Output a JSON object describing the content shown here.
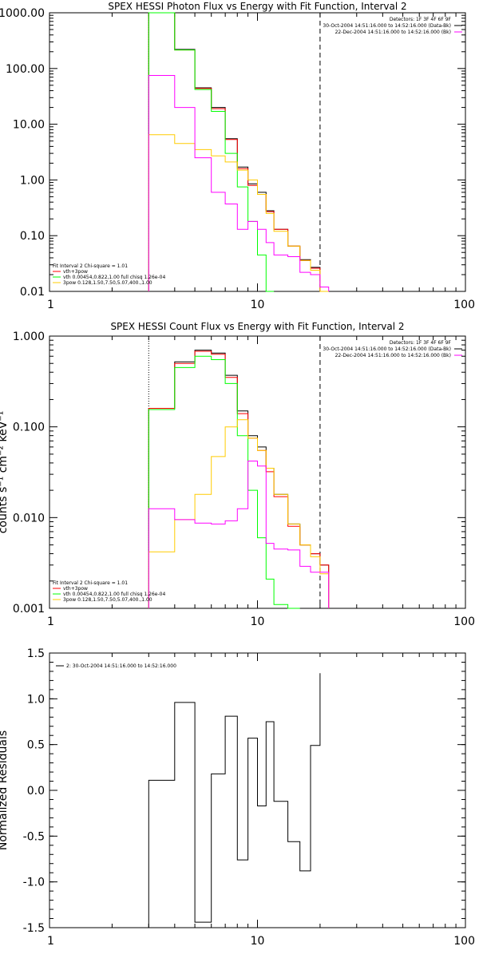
{
  "chart_data": [
    {
      "type": "line",
      "title": "SPEX HESSI Photon Flux vs Energy with Fit Function, Interval 2",
      "xscale": "log",
      "yscale": "log",
      "xlim": [
        1,
        100
      ],
      "ylim": [
        0.01,
        1000
      ],
      "xticks": [
        "1",
        "10",
        "100"
      ],
      "yticks": [
        "0.01",
        "0.10",
        "1.00",
        "10.00",
        "100.00",
        "1000.00"
      ],
      "ylabel": "",
      "header_lines": [
        "Detectors: 1F 3F 4F 6F 9F",
        "30-Oct-2004 14:51:16.000 to 14:52:16.000 (Data-Bk)",
        "22-Dec-2004 14:51:16.000 to 14:52:16.000 (Bk)"
      ],
      "header_colors": [
        "#000000",
        "#000000",
        "#ff00ff"
      ],
      "fit_lines": [
        "Fit Interval 2   Chi-square = 1.01",
        "vth+3pow",
        "vth 0.00454,0.822,1.00   full chisq 1.26e-04",
        "3pow 0.128,1.50,7.50,5.07,400.,1.00"
      ],
      "fit_colors": [
        "#000000",
        "#ff0000",
        "#00ff00",
        "#ffcc00"
      ],
      "vlines": [
        {
          "x": 3,
          "style": "dotted"
        },
        {
          "x": 20,
          "style": "dashed"
        }
      ],
      "edges": [
        3,
        4,
        5,
        6,
        7,
        8,
        9,
        10,
        11,
        12,
        14,
        16,
        18,
        20,
        22
      ],
      "series": [
        {
          "color": "#000000",
          "values": [
            1000,
            220,
            45,
            20,
            5.5,
            1.7,
            0.85,
            0.6,
            0.28,
            0.13,
            0.065,
            0.037,
            0.027,
            0.01
          ]
        },
        {
          "color": "#ff0000",
          "values": [
            1000,
            215,
            44,
            19,
            5.3,
            1.6,
            0.8,
            0.55,
            0.27,
            0.13,
            0.065,
            0.036,
            0.026,
            0.01
          ]
        },
        {
          "color": "#00ff00",
          "values": [
            1000,
            215,
            42,
            17,
            3.0,
            0.75,
            0.18,
            0.045,
            0.01
          ]
        },
        {
          "color": "#ffcc00",
          "values": [
            6.5,
            4.5,
            3.5,
            2.7,
            2.1,
            1.5,
            1.0,
            0.55,
            0.25,
            0.12,
            0.065,
            0.036,
            0.024,
            0.01
          ]
        },
        {
          "color": "#ff00ff",
          "values": [
            75,
            20,
            2.5,
            0.6,
            0.37,
            0.13,
            0.18,
            0.13,
            0.075,
            0.045,
            0.042,
            0.022,
            0.02,
            0.012
          ]
        }
      ]
    },
    {
      "type": "line",
      "title": "SPEX HESSI Count Flux vs Energy with Fit Function, Interval 2",
      "xscale": "log",
      "yscale": "log",
      "xlim": [
        1,
        100
      ],
      "ylim": [
        0.001,
        1
      ],
      "xticks": [
        "1",
        "10",
        "100"
      ],
      "yticks": [
        "0.001",
        "0.010",
        "0.100",
        "1.000"
      ],
      "ylabel": "counts s⁻¹ cm⁻² keV⁻¹",
      "header_lines": [
        "Detectors: 1F 3F 4F 6F 9F",
        "30-Oct-2004 14:51:16.000 to 14:52:16.000 (Data-Bk)",
        "22-Dec-2004 14:51:16.000 to 14:52:16.000 (Bk)"
      ],
      "header_colors": [
        "#000000",
        "#000000",
        "#ff00ff"
      ],
      "fit_lines": [
        "Fit Interval 2   Chi-square = 1.01",
        "vth+3pow",
        "vth 0.00454,0.822,1.00   full chisq 1.26e-04",
        "3pow 0.128,1.50,7.50,5.07,400.,1.00"
      ],
      "fit_colors": [
        "#000000",
        "#ff0000",
        "#00ff00",
        "#ffcc00"
      ],
      "vlines": [
        {
          "x": 3,
          "style": "dotted"
        },
        {
          "x": 20,
          "style": "dashed"
        }
      ],
      "edges": [
        3,
        4,
        5,
        6,
        7,
        8,
        9,
        10,
        11,
        12,
        14,
        16,
        18,
        20,
        22
      ],
      "series": [
        {
          "color": "#000000",
          "values": [
            0.16,
            0.52,
            0.7,
            0.65,
            0.37,
            0.15,
            0.08,
            0.06,
            0.035,
            0.018,
            0.0085,
            0.005,
            0.004,
            0.003,
            0.001
          ]
        },
        {
          "color": "#ff0000",
          "values": [
            0.16,
            0.5,
            0.68,
            0.63,
            0.35,
            0.14,
            0.075,
            0.055,
            0.032,
            0.017,
            0.008,
            0.005,
            0.004,
            0.003,
            0.001
          ]
        },
        {
          "color": "#00ff00",
          "values": [
            0.155,
            0.45,
            0.6,
            0.55,
            0.3,
            0.08,
            0.02,
            0.006,
            0.0021,
            0.0011,
            0.001
          ]
        },
        {
          "color": "#ffcc00",
          "values": [
            0.0042,
            0.0095,
            0.018,
            0.047,
            0.1,
            0.12,
            0.075,
            0.055,
            0.035,
            0.018,
            0.0085,
            0.005,
            0.0037,
            0.0024,
            0.001
          ]
        },
        {
          "color": "#ff00ff",
          "values": [
            0.0125,
            0.0095,
            0.0087,
            0.0085,
            0.0092,
            0.0125,
            0.042,
            0.037,
            0.0052,
            0.0045,
            0.0044,
            0.0029,
            0.0025,
            0.0025
          ]
        }
      ]
    },
    {
      "type": "line",
      "title": "",
      "xscale": "log",
      "yscale": "linear",
      "xlim": [
        1,
        100
      ],
      "ylim": [
        -1.5,
        1.5
      ],
      "xticks": [
        "1",
        "10",
        "100"
      ],
      "yticks": [
        "1.5",
        "1.0",
        "0.5",
        "0.0",
        "-0.5",
        "-1.0",
        "-1.5"
      ],
      "ylabel": "Normalized Residuals",
      "legend": "2: 30-Oct-2004 14:51:16.000 to 14:52:16.000",
      "edges": [
        3,
        4,
        5,
        6,
        7,
        8,
        9,
        10,
        11,
        12,
        14,
        16,
        18,
        20
      ],
      "series": [
        {
          "color": "#000000",
          "values": [
            0.11,
            0.96,
            -1.44,
            0.18,
            0.81,
            -0.76,
            0.57,
            -0.17,
            0.75,
            -0.12,
            -0.56,
            -0.88,
            0.49,
            1.28
          ]
        }
      ]
    }
  ]
}
